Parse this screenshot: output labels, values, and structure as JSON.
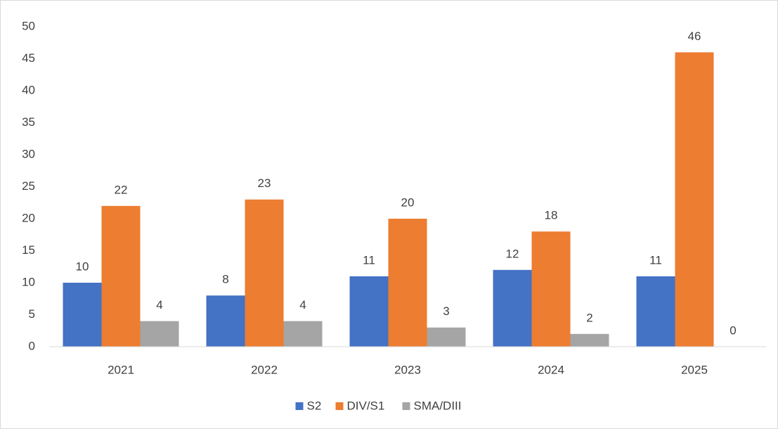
{
  "chart_data": {
    "type": "bar",
    "categories": [
      "2021",
      "2022",
      "2023",
      "2024",
      "2025"
    ],
    "series": [
      {
        "name": "S2",
        "color": "#4472c4",
        "values": [
          10,
          8,
          11,
          12,
          11
        ]
      },
      {
        "name": "DIV/S1",
        "color": "#ed7d31",
        "values": [
          22,
          23,
          20,
          18,
          46
        ]
      },
      {
        "name": "SMA/DIII",
        "color": "#a5a5a5",
        "values": [
          4,
          4,
          3,
          2,
          0
        ]
      }
    ],
    "ylim": [
      0,
      50
    ],
    "yticks": [
      0,
      5,
      10,
      15,
      20,
      25,
      30,
      35,
      40,
      45,
      50
    ],
    "grid": false,
    "legend": "bottom"
  }
}
